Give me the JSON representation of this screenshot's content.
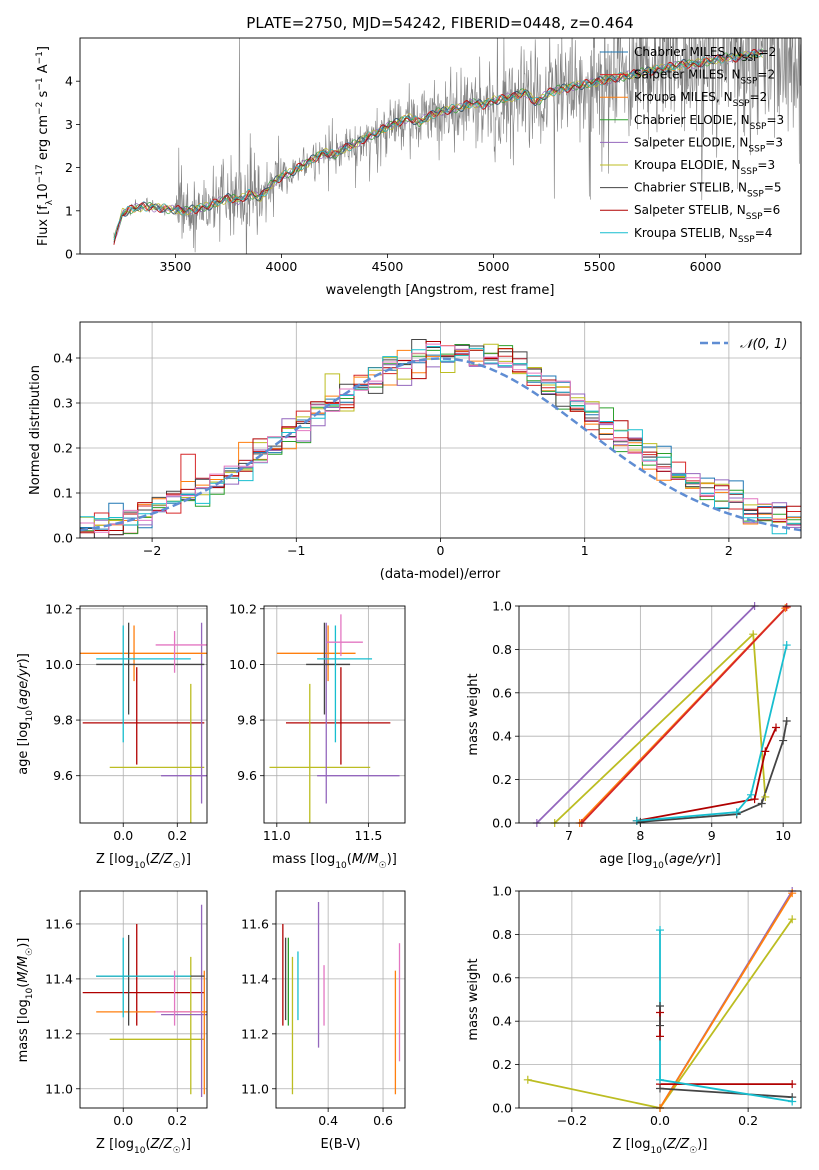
{
  "chart_data": [
    {
      "type": "line",
      "title": "PLATE=2750, MJD=54242, FIBERID=0448, z=0.464",
      "xlabel": "wavelength [Angstrom, rest frame]",
      "ylabel": "Flux [f_λ 10^-17 erg cm^-2 s^-1 A^-1]",
      "xlim": [
        3050,
        6450
      ],
      "ylim": [
        0,
        5
      ],
      "xticks": [
        "3500",
        "4000",
        "4500",
        "5000",
        "5500",
        "6000"
      ],
      "yticks": [
        "0",
        "1",
        "2",
        "3",
        "4"
      ],
      "grid": false,
      "legend_position": "top-right",
      "series": [
        {
          "name": "Chabrier MILES, N_SSP=2",
          "color": "#1f77b4"
        },
        {
          "name": "Salpeter MILES, N_SSP=2",
          "color": "#d62728"
        },
        {
          "name": "Kroupa MILES, N_SSP=2",
          "color": "#ff7f0e"
        },
        {
          "name": "Chabrier ELODIE, N_SSP=3",
          "color": "#2ca02c"
        },
        {
          "name": "Salpeter ELODIE, N_SSP=3",
          "color": "#9467bd"
        },
        {
          "name": "Kroupa ELODIE, N_SSP=3",
          "color": "#bcbd22"
        },
        {
          "name": "Chabrier STELIB, N_SSP=5",
          "color": "#444444"
        },
        {
          "name": "Salpeter STELIB, N_SSP=6",
          "color": "#b00000"
        },
        {
          "name": "Kroupa STELIB, N_SSP=4",
          "color": "#17becf"
        }
      ],
      "model_x": [
        3210,
        3250,
        3300,
        3350,
        3400,
        3450,
        3500,
        3550,
        3600,
        3650,
        3700,
        3750,
        3800,
        3850,
        3900,
        3950,
        4000,
        4050,
        4100,
        4150,
        4200,
        4250,
        4300,
        4350,
        4400,
        4450,
        4500,
        4550,
        4600,
        4650,
        4700,
        4750,
        4800,
        4850,
        4900,
        4950,
        5000,
        5050,
        5100,
        5150,
        5200,
        5250,
        5300,
        5350,
        5400,
        5450,
        5500,
        5550,
        5600,
        5650,
        5700,
        5750,
        5800,
        5850,
        5900,
        5950,
        6000,
        6050,
        6100,
        6150,
        6200,
        6250
      ],
      "model_y": [
        0.3,
        0.95,
        1.05,
        1.1,
        1.08,
        1.05,
        1.02,
        1.0,
        1.05,
        1.1,
        1.2,
        1.3,
        1.25,
        1.4,
        1.3,
        1.6,
        1.8,
        1.9,
        2.05,
        2.2,
        2.35,
        2.3,
        2.45,
        2.55,
        2.7,
        2.8,
        2.95,
        3.05,
        3.15,
        3.05,
        3.2,
        3.3,
        3.35,
        3.4,
        3.5,
        3.45,
        3.55,
        3.6,
        3.65,
        3.75,
        3.5,
        3.7,
        3.8,
        3.85,
        3.9,
        3.95,
        4.0,
        4.05,
        4.1,
        4.15,
        4.2,
        4.25,
        4.3,
        4.35,
        4.4,
        4.4,
        4.45,
        4.5,
        4.55,
        4.55,
        4.6,
        4.65
      ]
    },
    {
      "type": "line",
      "title": "",
      "xlabel": "(data-model)/error",
      "ylabel": "Normed distribution",
      "xlim": [
        -2.5,
        2.5
      ],
      "ylim": [
        0,
        0.48
      ],
      "xticks": [
        "−2",
        "−1",
        "0",
        "1",
        "2"
      ],
      "yticks": [
        "0.0",
        "0.1",
        "0.2",
        "0.3",
        "0.4"
      ],
      "grid": true,
      "legend_position": "top-right",
      "legend": [
        "𝒩(0, 1)"
      ],
      "reference_curve": {
        "name": "𝒩(0, 1)",
        "mean": 0,
        "sigma": 1,
        "color": "#5f8dd3"
      }
    },
    {
      "type": "scatter",
      "title": "",
      "xlabel": "Z [log10(Z/Z☉)]",
      "ylabel": "age [log10(age/yr)]",
      "xlim": [
        -0.16,
        0.31
      ],
      "ylim": [
        9.43,
        10.21
      ],
      "xticks": [
        "0.0",
        "0.2"
      ],
      "yticks": [
        "9.6",
        "9.8",
        "10.0",
        "10.2"
      ],
      "grid": true,
      "points": [
        {
          "x": 0.05,
          "y": 9.79,
          "xerr": [
            0.2,
            0.25
          ],
          "yerr": [
            0.15,
            0.2
          ],
          "color": "#b00000"
        },
        {
          "x": 0.25,
          "y": 9.63,
          "xerr": [
            0.3,
            0.05
          ],
          "yerr": [
            0.2,
            0.3
          ],
          "color": "#bcbd22"
        },
        {
          "x": 0.29,
          "y": 9.6,
          "xerr": [
            0.15,
            0.05
          ],
          "yerr": [
            0.1,
            0.55
          ],
          "color": "#9467bd"
        },
        {
          "x": 0.04,
          "y": 10.04,
          "xerr": [
            0.2,
            0.27
          ],
          "yerr": [
            0.1,
            0.1
          ],
          "color": "#ff7f0e"
        },
        {
          "x": 0.02,
          "y": 10.0,
          "xerr": [
            0.12,
            0.28
          ],
          "yerr": [
            0.18,
            0.15
          ],
          "color": "#444444"
        },
        {
          "x": 0.0,
          "y": 10.02,
          "xerr": [
            0.1,
            0.25
          ],
          "yerr": [
            0.3,
            0.12
          ],
          "color": "#17becf"
        },
        {
          "x": 0.19,
          "y": 10.07,
          "xerr": [
            0.07,
            0.2
          ],
          "yerr": [
            0.1,
            0.05
          ],
          "color": "#e377c2"
        }
      ]
    },
    {
      "type": "scatter",
      "title": "",
      "xlabel": "mass [log10(M/M☉)]",
      "ylabel": "",
      "xlim": [
        10.93,
        11.7
      ],
      "ylim": [
        9.43,
        10.21
      ],
      "xticks": [
        "11.0",
        "11.5"
      ],
      "yticks": [
        "9.6",
        "9.8",
        "10.0",
        "10.2"
      ],
      "grid": true,
      "points": [
        {
          "x": 11.35,
          "y": 9.79,
          "xerr": [
            0.3,
            0.27
          ],
          "yerr": [
            0.15,
            0.2
          ],
          "color": "#b00000"
        },
        {
          "x": 11.18,
          "y": 9.63,
          "xerr": [
            0.22,
            0.33
          ],
          "yerr": [
            0.2,
            0.3
          ],
          "color": "#bcbd22"
        },
        {
          "x": 11.27,
          "y": 9.6,
          "xerr": [
            0.05,
            0.4
          ],
          "yerr": [
            0.1,
            0.55
          ],
          "color": "#9467bd"
        },
        {
          "x": 11.28,
          "y": 10.04,
          "xerr": [
            0.28,
            0.15
          ],
          "yerr": [
            0.1,
            0.1
          ],
          "color": "#ff7f0e"
        },
        {
          "x": 11.26,
          "y": 10.0,
          "xerr": [
            0.1,
            0.14
          ],
          "yerr": [
            0.18,
            0.15
          ],
          "color": "#444444"
        },
        {
          "x": 11.32,
          "y": 10.02,
          "xerr": [
            0.1,
            0.2
          ],
          "yerr": [
            0.3,
            0.12
          ],
          "color": "#17becf"
        },
        {
          "x": 11.35,
          "y": 10.08,
          "xerr": [
            0.08,
            0.12
          ],
          "yerr": [
            0.05,
            0.1
          ],
          "color": "#e377c2"
        }
      ]
    },
    {
      "type": "line",
      "title": "",
      "xlabel": "age [log10(age/yr)]",
      "ylabel": "mass weight",
      "xlim": [
        6.3,
        10.25
      ],
      "ylim": [
        0,
        1
      ],
      "xticks": [
        "7",
        "8",
        "9",
        "10"
      ],
      "yticks": [
        "0.0",
        "0.2",
        "0.4",
        "0.6",
        "0.8",
        "1.0"
      ],
      "grid": true,
      "series": [
        {
          "color": "#9467bd",
          "x": [
            6.55,
            9.6
          ],
          "y": [
            0.0,
            1.0
          ]
        },
        {
          "color": "#bcbd22",
          "x": [
            6.8,
            9.58,
            9.75
          ],
          "y": [
            0.0,
            0.87,
            0.12
          ]
        },
        {
          "color": "#ff7f0e",
          "x": [
            7.15,
            10.03
          ],
          "y": [
            0.0,
            0.99
          ]
        },
        {
          "color": "#d62728",
          "x": [
            7.18,
            10.05
          ],
          "y": [
            0.0,
            0.995
          ]
        },
        {
          "color": "#b00000",
          "x": [
            7.95,
            9.6,
            9.75,
            9.9
          ],
          "y": [
            0.01,
            0.11,
            0.33,
            0.44
          ]
        },
        {
          "color": "#444444",
          "x": [
            8.0,
            9.35,
            9.7,
            10.0,
            10.05
          ],
          "y": [
            0.005,
            0.04,
            0.09,
            0.38,
            0.47
          ]
        },
        {
          "color": "#17becf",
          "x": [
            7.95,
            9.35,
            9.55,
            10.05
          ],
          "y": [
            0.01,
            0.05,
            0.13,
            0.82
          ]
        }
      ]
    },
    {
      "type": "scatter",
      "title": "",
      "xlabel": "Z [log10(Z/Z☉)]",
      "ylabel": "mass [log10(M/M☉)]",
      "xlim": [
        -0.16,
        0.31
      ],
      "ylim": [
        10.93,
        11.72
      ],
      "xticks": [
        "0.0",
        "0.2"
      ],
      "yticks": [
        "11.0",
        "11.2",
        "11.4",
        "11.6"
      ],
      "grid": true,
      "points": [
        {
          "x": 0.05,
          "y": 11.35,
          "xerr": [
            0.2,
            0.25
          ],
          "yerr": [
            0.12,
            0.25
          ],
          "color": "#b00000"
        },
        {
          "x": 0.25,
          "y": 11.18,
          "xerr": [
            0.3,
            0.05
          ],
          "yerr": [
            0.2,
            0.3
          ],
          "color": "#bcbd22"
        },
        {
          "x": 0.29,
          "y": 11.27,
          "xerr": [
            0.15,
            0.05
          ],
          "yerr": [
            0.3,
            0.4
          ],
          "color": "#9467bd"
        },
        {
          "x": 0.3,
          "y": 11.28,
          "xerr": [
            0.4,
            0.02
          ],
          "yerr": [
            0.3,
            0.15
          ],
          "color": "#ff7f0e"
        },
        {
          "x": 0.02,
          "y": 11.41,
          "xerr": [
            0.12,
            0.28
          ],
          "yerr": [
            0.18,
            0.15
          ],
          "color": "#444444"
        },
        {
          "x": 0.0,
          "y": 11.41,
          "xerr": [
            0.1,
            0.25
          ],
          "yerr": [
            0.15,
            0.14
          ],
          "color": "#17becf"
        },
        {
          "x": 0.19,
          "y": 11.28,
          "xerr": [
            0.07,
            0.1
          ],
          "yerr": [
            0.05,
            0.15
          ],
          "color": "#e377c2"
        }
      ]
    },
    {
      "type": "scatter",
      "title": "",
      "xlabel": "E(B-V)",
      "ylabel": "",
      "xlim": [
        0.21,
        0.68
      ],
      "ylim": [
        10.93,
        11.72
      ],
      "xticks": [
        "0.4",
        "0.6"
      ],
      "yticks": [
        "11.0",
        "11.2",
        "11.4",
        "11.6"
      ],
      "grid": true,
      "points": [
        {
          "x": 0.235,
          "y": 11.35,
          "yerr": [
            0.12,
            0.25
          ],
          "color": "#b00000"
        },
        {
          "x": 0.245,
          "y": 11.4,
          "yerr": [
            0.15,
            0.15
          ],
          "color": "#444444"
        },
        {
          "x": 0.255,
          "y": 11.35,
          "yerr": [
            0.12,
            0.2
          ],
          "color": "#2ca02c"
        },
        {
          "x": 0.27,
          "y": 11.2,
          "yerr": [
            0.22,
            0.28
          ],
          "color": "#bcbd22"
        },
        {
          "x": 0.29,
          "y": 11.35,
          "yerr": [
            0.1,
            0.15
          ],
          "color": "#17becf"
        },
        {
          "x": 0.365,
          "y": 11.3,
          "yerr": [
            0.15,
            0.38
          ],
          "color": "#9467bd"
        },
        {
          "x": 0.385,
          "y": 11.35,
          "yerr": [
            0.12,
            0.1
          ],
          "color": "#e377c2"
        },
        {
          "x": 0.645,
          "y": 11.2,
          "yerr": [
            0.22,
            0.23
          ],
          "color": "#ff7f0e"
        },
        {
          "x": 0.66,
          "y": 11.3,
          "yerr": [
            0.2,
            0.23
          ],
          "color": "#e377c2"
        }
      ]
    },
    {
      "type": "line",
      "title": "",
      "xlabel": "Z [log10(Z/Z☉)]",
      "ylabel": "mass weight",
      "xlim": [
        -0.32,
        0.32
      ],
      "ylim": [
        0,
        1
      ],
      "xticks": [
        "−0.2",
        "0.0",
        "0.2"
      ],
      "yticks": [
        "0.0",
        "0.2",
        "0.4",
        "0.6",
        "0.8",
        "1.0"
      ],
      "grid": true,
      "series": [
        {
          "color": "#9467bd",
          "x": [
            0.0,
            0.3
          ],
          "y": [
            0.0,
            1.0
          ]
        },
        {
          "color": "#bcbd22",
          "x": [
            -0.3,
            0.0,
            0.3
          ],
          "y": [
            0.13,
            0.0,
            0.87
          ]
        },
        {
          "color": "#ff7f0e",
          "x": [
            0.0,
            0.3
          ],
          "y": [
            0.0,
            0.99
          ]
        },
        {
          "color": "#b00000",
          "x": [
            0.0,
            0.3
          ],
          "y": [
            0.11,
            0.11
          ]
        },
        {
          "color": "#444444",
          "x": [
            0.0,
            0.3
          ],
          "y": [
            0.09,
            0.05
          ]
        },
        {
          "color": "#17becf",
          "x": [
            0.0,
            0.0,
            0.3
          ],
          "y": [
            0.82,
            0.13,
            0.03
          ]
        },
        {
          "color": "#b00000",
          "x": [
            0.0,
            0.0
          ],
          "y": [
            0.33,
            0.44
          ]
        },
        {
          "color": "#444444",
          "x": [
            0.0,
            0.0
          ],
          "y": [
            0.38,
            0.47
          ]
        }
      ]
    }
  ]
}
